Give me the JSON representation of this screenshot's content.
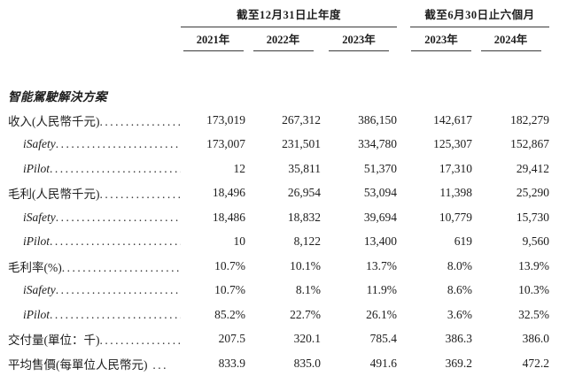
{
  "page": {
    "background_color": "#ffffff",
    "text_color": "#1d1d1d",
    "rule_color": "#3a3a3a"
  },
  "table": {
    "column_groups": [
      {
        "label": "截至12月31日止年度",
        "span_years": 3
      },
      {
        "label": "截至6月30日止六個月",
        "span_years": 2
      }
    ],
    "year_headers": [
      "2021年",
      "2022年",
      "2023年",
      "2023年",
      "2024年"
    ],
    "section_title": "智能駕駛解決方案",
    "rows": [
      {
        "label": "收入(人民幣千元)",
        "dots": "....................",
        "indent": false,
        "values": [
          "173,019",
          "267,312",
          "386,150",
          "142,617",
          "182,279"
        ]
      },
      {
        "label": "iSafety",
        "dots": "............................",
        "indent": true,
        "values": [
          "173,007",
          "231,501",
          "334,780",
          "125,307",
          "152,867"
        ]
      },
      {
        "label": "iPilot",
        "dots": ".............................",
        "indent": true,
        "values": [
          "12",
          "35,811",
          "51,370",
          "17,310",
          "29,412"
        ]
      },
      {
        "label": "毛利(人民幣千元)",
        "dots": "....................",
        "indent": false,
        "values": [
          "18,496",
          "26,954",
          "53,094",
          "11,398",
          "25,290"
        ]
      },
      {
        "label": "iSafety",
        "dots": "............................",
        "indent": true,
        "values": [
          "18,486",
          "18,832",
          "39,694",
          "10,779",
          "15,730"
        ]
      },
      {
        "label": "iPilot",
        "dots": ".............................",
        "indent": true,
        "values": [
          "10",
          "8,122",
          "13,400",
          "619",
          "9,560"
        ]
      },
      {
        "label": "毛利率(%)",
        "dots": "..........................",
        "indent": false,
        "values": [
          "10.7%",
          "10.1%",
          "13.7%",
          "8.0%",
          "13.9%"
        ]
      },
      {
        "label": "iSafety",
        "dots": "............................",
        "indent": true,
        "values": [
          "10.7%",
          "8.1%",
          "11.9%",
          "8.6%",
          "10.3%"
        ]
      },
      {
        "label": "iPilot",
        "dots": ".............................",
        "indent": true,
        "values": [
          "85.2%",
          "22.7%",
          "26.1%",
          "3.6%",
          "32.5%"
        ]
      },
      {
        "label": "交付量(單位：千)",
        "dots": "....................",
        "indent": false,
        "values": [
          "207.5",
          "320.1",
          "785.4",
          "386.3",
          "386.0"
        ]
      },
      {
        "label": "平均售價(每單位人民幣元)",
        "dots": " ...",
        "indent": false,
        "values": [
          "833.9",
          "835.0",
          "491.6",
          "369.2",
          "472.2"
        ]
      }
    ]
  }
}
